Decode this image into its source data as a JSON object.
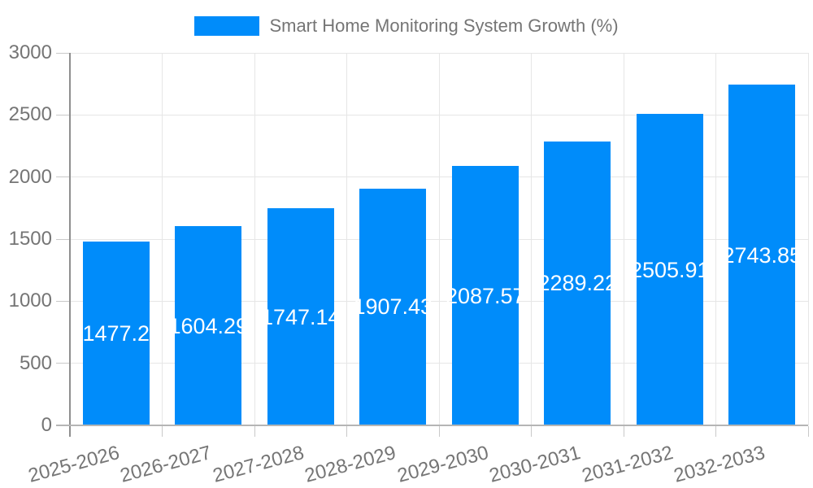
{
  "legend": {
    "label": "Smart Home Monitoring System Growth (%)"
  },
  "chart_data": {
    "type": "bar",
    "title": "Smart Home Monitoring System Growth (%)",
    "categories": [
      "2025-2026",
      "2026-2027",
      "2027-2028",
      "2028-2029",
      "2029-2030",
      "2030-2031",
      "2031-2032",
      "2032-2033"
    ],
    "series": [
      {
        "name": "Smart Home Monitoring System Growth (%)",
        "values": [
          1477.2,
          1604.29,
          1747.14,
          1907.43,
          2087.57,
          2289.22,
          2505.91,
          2743.85
        ],
        "labels": [
          "1477.2",
          "1604.29",
          "1747.14",
          "1907.43",
          "2087.57",
          "2289.22",
          "2505.91",
          "2743.85"
        ]
      }
    ],
    "xlabel": "",
    "ylabel": "",
    "ylim": [
      0,
      3000
    ],
    "yticks": [
      0,
      500,
      1000,
      1500,
      2000,
      2500,
      3000
    ],
    "grid": true,
    "legend_position": "top-center",
    "annotation_position": "bar-center",
    "colors": {
      "bar": "#008cfa",
      "axis_text": "#757575",
      "annotation_text": "#ffffff",
      "gridline": "#e6e6e6",
      "spine": "#8f8f8f",
      "baseline": "#b5b5b5",
      "tick": "#c9c9c9"
    }
  }
}
